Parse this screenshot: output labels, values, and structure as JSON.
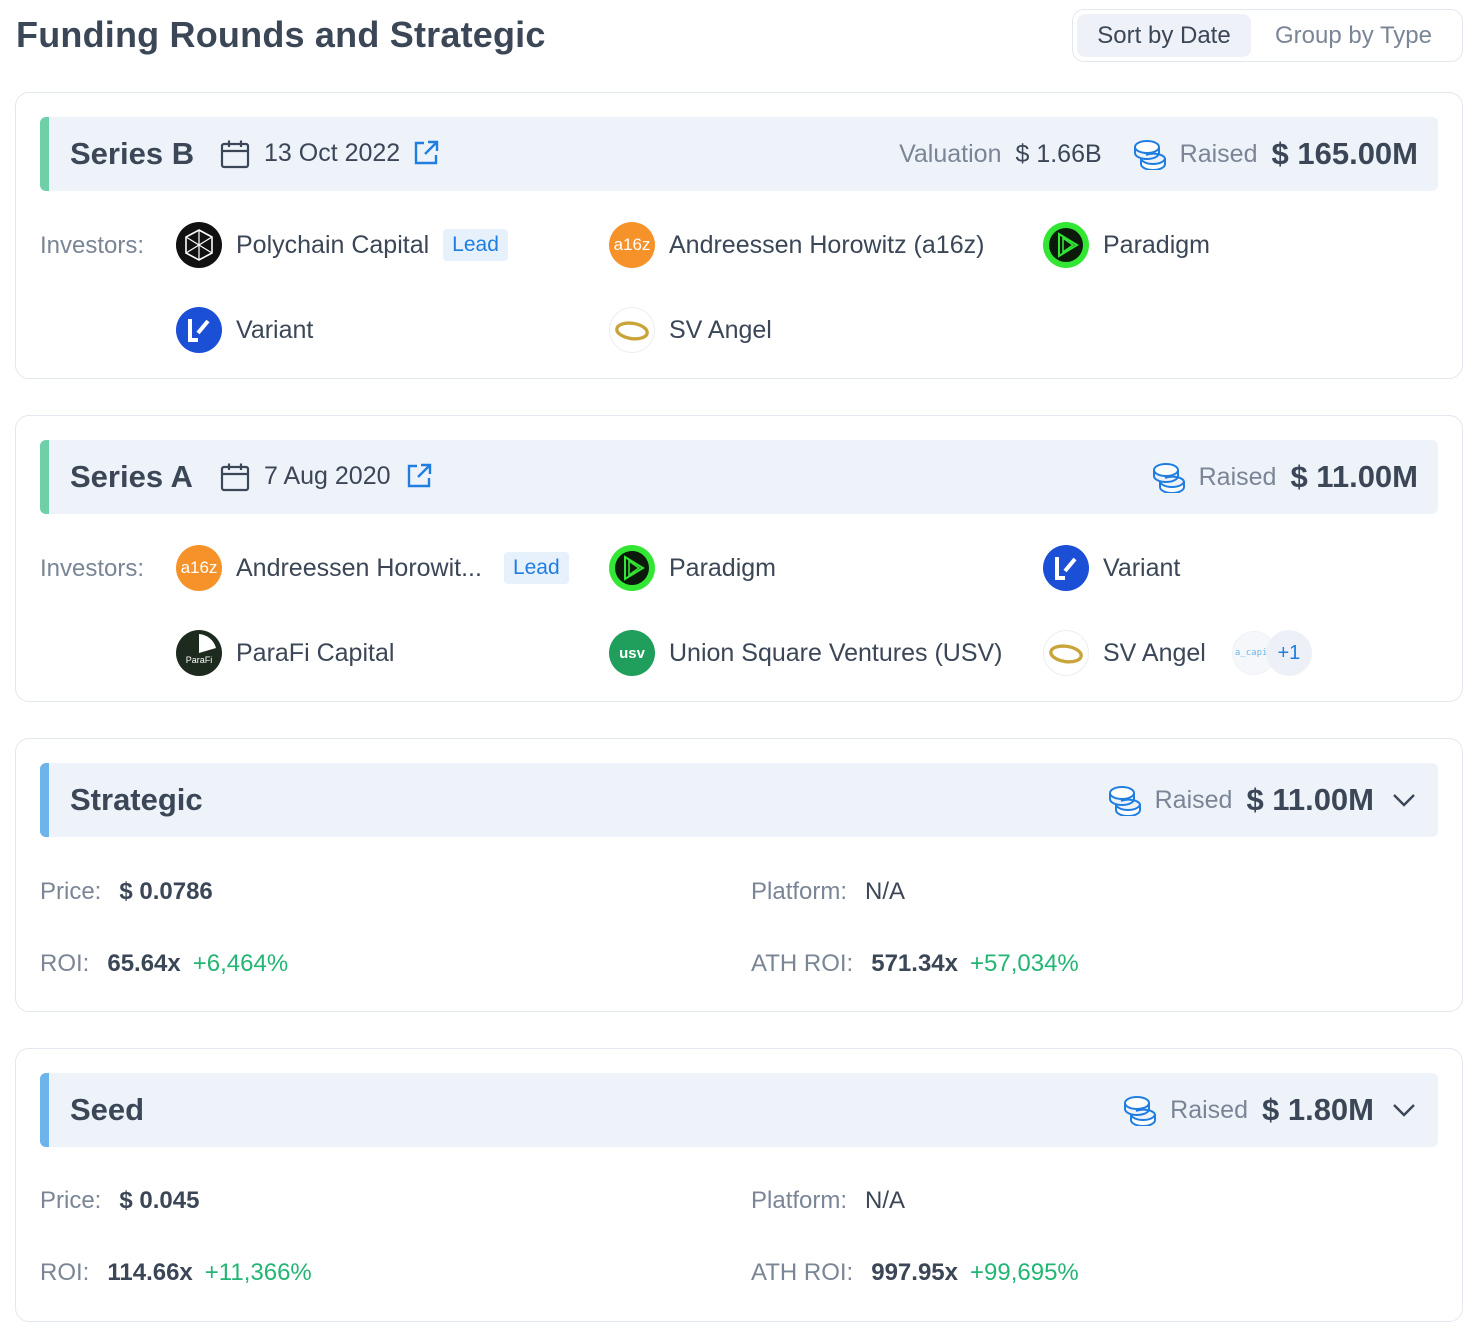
{
  "title": "Funding Rounds and Strategic",
  "toggle": {
    "sort_by_date": "Sort by Date",
    "group_by_type": "Group by Type"
  },
  "labels": {
    "investors": "Investors:",
    "valuation": "Valuation",
    "raised": "Raised",
    "lead": "Lead",
    "price": "Price:",
    "platform": "Platform:",
    "roi": "ROI:",
    "ath_roi": "ATH ROI:"
  },
  "icons": [
    "calendar-icon",
    "external-link-icon",
    "coins-icon",
    "chevron-down-icon"
  ],
  "colors": {
    "accent_green": "#6fd0a8",
    "accent_blue": "#6db4ea",
    "link_blue": "#1f7ee0",
    "positive": "#22b573"
  },
  "rounds": [
    {
      "name": "Series B",
      "date": "13 Oct 2022",
      "valuation": "$ 1.66B",
      "raised": "$ 165.00M",
      "investors": [
        {
          "name": "Polychain Capital",
          "lead": true
        },
        {
          "name": "Andreessen Horowitz (a16z)",
          "lead": false
        },
        {
          "name": "Paradigm",
          "lead": false
        },
        {
          "name": "Variant",
          "lead": false
        },
        {
          "name": "SV Angel",
          "lead": false
        }
      ]
    },
    {
      "name": "Series A",
      "date": "7 Aug 2020",
      "raised": "$ 11.00M",
      "investors": [
        {
          "name": "Andreessen Horowit...",
          "lead": true
        },
        {
          "name": "Paradigm",
          "lead": false
        },
        {
          "name": "Variant",
          "lead": false
        },
        {
          "name": "ParaFi Capital",
          "lead": false
        },
        {
          "name": "Union Square Ventures (USV)",
          "lead": false
        },
        {
          "name": "SV Angel",
          "lead": false
        }
      ],
      "more_count": "+1",
      "more_logo_text": "a_capit"
    }
  ],
  "strategic_rounds": [
    {
      "name": "Strategic",
      "raised": "$ 11.00M",
      "price": "$ 0.0786",
      "platform": "N/A",
      "roi": "65.64x",
      "roi_pct": "+6,464%",
      "ath_roi": "571.34x",
      "ath_roi_pct": "+57,034%"
    },
    {
      "name": "Seed",
      "raised": "$ 1.80M",
      "price": "$ 0.045",
      "platform": "N/A",
      "roi": "114.66x",
      "roi_pct": "+11,366%",
      "ath_roi": "997.95x",
      "ath_roi_pct": "+99,695%"
    }
  ],
  "logo_text": {
    "a16z": "a16z",
    "usv": "usv",
    "parafi": "ParaFi"
  }
}
